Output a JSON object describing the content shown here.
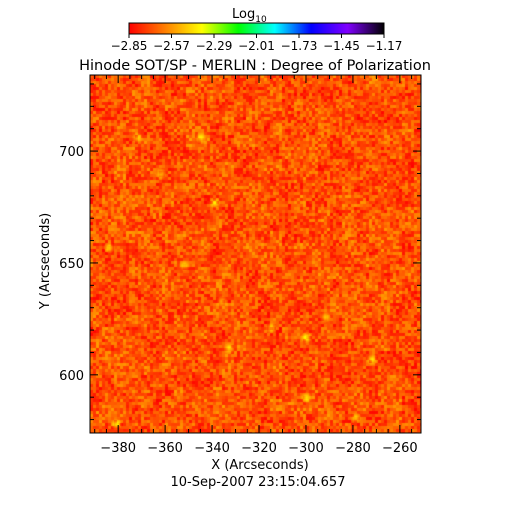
{
  "chart_data": {
    "type": "heatmap",
    "title": "Hinode SOT/SP - MERLIN : Degree of Polarization",
    "subtitle": "10-Sep-2007 23:15:04.657",
    "xlabel": "X (Arcseconds)",
    "ylabel": "Y (Arcseconds)",
    "xlim": [
      -392,
      -251
    ],
    "ylim": [
      574,
      734
    ],
    "x_ticks": [
      -380,
      -360,
      -340,
      -320,
      -300,
      -280,
      -260
    ],
    "y_ticks": [
      600,
      650,
      700
    ],
    "x_tick_labels": [
      "−380",
      "−360",
      "−340",
      "−320",
      "−300",
      "−280",
      "−260"
    ],
    "y_tick_labels": [
      "600",
      "650",
      "700"
    ],
    "colorbar": {
      "title_base": "Log",
      "title_sub": "10",
      "range": [
        -2.85,
        -1.17
      ],
      "ticks": [
        -2.85,
        -2.57,
        -2.29,
        -2.01,
        -1.73,
        -1.45,
        -1.17
      ],
      "tick_labels": [
        "−2.85",
        "−2.57",
        "−2.29",
        "−2.01",
        "−1.73",
        "−1.45",
        "−1.17"
      ],
      "colormap": [
        "#ff0000",
        "#ff8000",
        "#ffff00",
        "#00ff00",
        "#00ffff",
        "#0000ff",
        "#8000ff",
        "#000000"
      ]
    },
    "field": {
      "background_value": -2.8,
      "noise_amplitude": 0.55,
      "dominant_color": "#ff3300",
      "patches": [
        {
          "x": -381,
          "y": 578,
          "v": -1.9
        },
        {
          "x": -345,
          "y": 706,
          "v": -2.0
        },
        {
          "x": -339,
          "y": 677,
          "v": -2.0
        },
        {
          "x": -384,
          "y": 657,
          "v": -2.0
        },
        {
          "x": -333,
          "y": 612,
          "v": -2.0
        },
        {
          "x": -300,
          "y": 617,
          "v": -1.9
        },
        {
          "x": -300,
          "y": 590,
          "v": -2.0
        },
        {
          "x": -272,
          "y": 607,
          "v": -2.0
        },
        {
          "x": -352,
          "y": 649,
          "v": -2.1
        },
        {
          "x": -372,
          "y": 706,
          "v": -2.1
        },
        {
          "x": -362,
          "y": 690,
          "v": -2.1
        },
        {
          "x": -315,
          "y": 621,
          "v": -2.1
        },
        {
          "x": -279,
          "y": 581,
          "v": -2.1
        },
        {
          "x": -292,
          "y": 626,
          "v": -2.1
        },
        {
          "x": -336,
          "y": 633,
          "v": -2.2
        }
      ]
    }
  }
}
